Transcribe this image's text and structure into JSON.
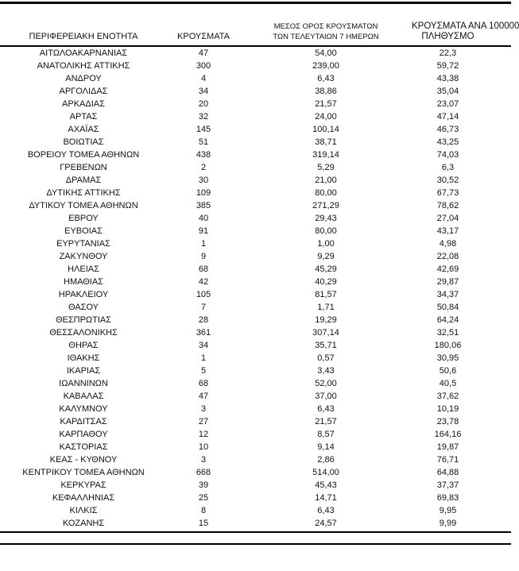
{
  "colors": {
    "background": "#ffffff",
    "text": "#111111",
    "rule": "#000000"
  },
  "table": {
    "headers": {
      "region": "ΠΕΡΙΦΕΡΕΙΑΚΗ ΕΝΟΤΗΤΑ",
      "cases": "ΚΡΟΥΣΜΑΤΑ",
      "avg7_line1": "ΜΕΣΟΣ ΟΡΟΣ ΚΡΟΥΣΜΑΤΩΝ",
      "avg7_line2": "ΤΩΝ ΤΕΛΕΥΤΑΙΩΝ 7 ΗΜΕΡΩΝ",
      "per100k_line1": "ΚΡΟΥΣΜΑΤΑ ΑΝΑ 100000",
      "per100k_line2": "ΠΛΗΘΥΣΜΟ"
    },
    "rows": [
      [
        "ΑΙΤΩΛΟΑΚΑΡΝΑΝΙΑΣ",
        "47",
        "54,00",
        "22,3"
      ],
      [
        "ΑΝΑΤΟΛΙΚΗΣ ΑΤΤΙΚΗΣ",
        "300",
        "239,00",
        "59,72"
      ],
      [
        "ΑΝΔΡΟΥ",
        "4",
        "6,43",
        "43,38"
      ],
      [
        "ΑΡΓΟΛΙΔΑΣ",
        "34",
        "38,86",
        "35,04"
      ],
      [
        "ΑΡΚΑΔΙΑΣ",
        "20",
        "21,57",
        "23,07"
      ],
      [
        "ΑΡΤΑΣ",
        "32",
        "24,00",
        "47,14"
      ],
      [
        "ΑΧΑΪΑΣ",
        "145",
        "100,14",
        "46,73"
      ],
      [
        "ΒΟΙΩΤΙΑΣ",
        "51",
        "38,71",
        "43,25"
      ],
      [
        "ΒΟΡΕΙΟΥ ΤΟΜΕΑ ΑΘΗΝΩΝ",
        "438",
        "319,14",
        "74,03"
      ],
      [
        "ΓΡΕΒΕΝΩΝ",
        "2",
        "5,29",
        "6,3"
      ],
      [
        "ΔΡΑΜΑΣ",
        "30",
        "21,00",
        "30,52"
      ],
      [
        "ΔΥΤΙΚΗΣ ΑΤΤΙΚΗΣ",
        "109",
        "80,00",
        "67,73"
      ],
      [
        "ΔΥΤΙΚΟΥ ΤΟΜΕΑ ΑΘΗΝΩΝ",
        "385",
        "271,29",
        "78,62"
      ],
      [
        "ΕΒΡΟΥ",
        "40",
        "29,43",
        "27,04"
      ],
      [
        "ΕΥΒΟΙΑΣ",
        "91",
        "80,00",
        "43,17"
      ],
      [
        "ΕΥΡΥΤΑΝΙΑΣ",
        "1",
        "1,00",
        "4,98"
      ],
      [
        "ΖΑΚΥΝΘΟΥ",
        "9",
        "9,29",
        "22,08"
      ],
      [
        "ΗΛΕΙΑΣ",
        "68",
        "45,29",
        "42,69"
      ],
      [
        "ΗΜΑΘΙΑΣ",
        "42",
        "40,29",
        "29,87"
      ],
      [
        "ΗΡΑΚΛΕΙΟΥ",
        "105",
        "81,57",
        "34,37"
      ],
      [
        "ΘΑΣΟΥ",
        "7",
        "1,71",
        "50,84"
      ],
      [
        "ΘΕΣΠΡΩΤΙΑΣ",
        "28",
        "19,29",
        "64,24"
      ],
      [
        "ΘΕΣΣΑΛΟΝΙΚΗΣ",
        "361",
        "307,14",
        "32,51"
      ],
      [
        "ΘΗΡΑΣ",
        "34",
        "35,71",
        "180,06"
      ],
      [
        "ΙΘΑΚΗΣ",
        "1",
        "0,57",
        "30,95"
      ],
      [
        "ΙΚΑΡΙΑΣ",
        "5",
        "3,43",
        "50,6"
      ],
      [
        "ΙΩΑΝΝΙΝΩΝ",
        "68",
        "52,00",
        "40,5"
      ],
      [
        "ΚΑΒΑΛΑΣ",
        "47",
        "37,00",
        "37,62"
      ],
      [
        "ΚΑΛΥΜΝΟΥ",
        "3",
        "6,43",
        "10,19"
      ],
      [
        "ΚΑΡΔΙΤΣΑΣ",
        "27",
        "21,57",
        "23,78"
      ],
      [
        "ΚΑΡΠΑΘΟΥ",
        "12",
        "8,57",
        "164,16"
      ],
      [
        "ΚΑΣΤΟΡΙΑΣ",
        "10",
        "9,14",
        "19,87"
      ],
      [
        "ΚΕΑΣ - ΚΥΘΝΟΥ",
        "3",
        "2,86",
        "76,71"
      ],
      [
        "ΚΕΝΤΡΙΚΟΥ ΤΟΜΕΑ ΑΘΗΝΩΝ",
        "668",
        "514,00",
        "64,88"
      ],
      [
        "ΚΕΡΚΥΡΑΣ",
        "39",
        "45,43",
        "37,37"
      ],
      [
        "ΚΕΦΑΛΛΗΝΙΑΣ",
        "25",
        "14,71",
        "69,83"
      ],
      [
        "ΚΙΛΚΙΣ",
        "8",
        "6,43",
        "9,95"
      ],
      [
        "ΚΟΖΑΝΗΣ",
        "15",
        "24,57",
        "9,99"
      ]
    ]
  }
}
